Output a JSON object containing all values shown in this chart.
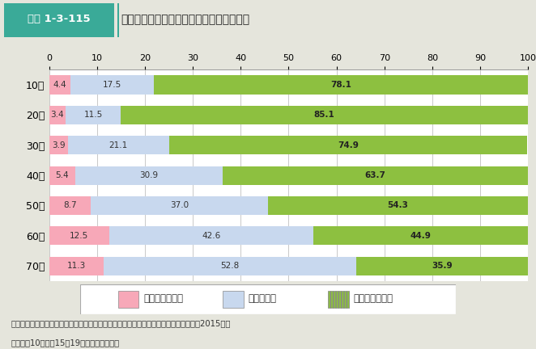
{
  "title_box_label": "図表 1-3-115",
  "title_main": "年齢階級別の町内会・自治会への参加頻度",
  "categories": [
    "10代",
    "20代",
    "30代",
    "40代",
    "50代",
    "60代",
    "70代"
  ],
  "monthly": [
    4.4,
    3.4,
    3.9,
    5.4,
    8.7,
    12.5,
    11.3
  ],
  "yearly": [
    17.5,
    11.5,
    21.1,
    30.9,
    37.0,
    42.6,
    52.8
  ],
  "not_participating": [
    78.1,
    85.1,
    74.9,
    63.7,
    54.3,
    44.9,
    35.9
  ],
  "color_monthly": "#f7a8b8",
  "color_yearly": "#c8d8ee",
  "color_not_bg": "#8dc040",
  "color_not_stripe": "#6aa020",
  "legend_labels": [
    "月１日程度以上",
    "年数回程度",
    "参加していない"
  ],
  "xlim": [
    0,
    100
  ],
  "xticks": [
    0,
    10,
    20,
    30,
    40,
    50,
    60,
    70,
    80,
    90,
    100
  ],
  "bg_color": "#e5e5dc",
  "plot_bg_color": "#ffffff",
  "header_teal": "#3aaa98",
  "grid_color": "#c0c0c0",
  "source_text1": "資料：厚生労働省政策統括官付政策評価官室委託「人口減少社会に関する意識調査」（2015年）",
  "source_text2": "（注）　10代は、15～19歳を対象とした。"
}
